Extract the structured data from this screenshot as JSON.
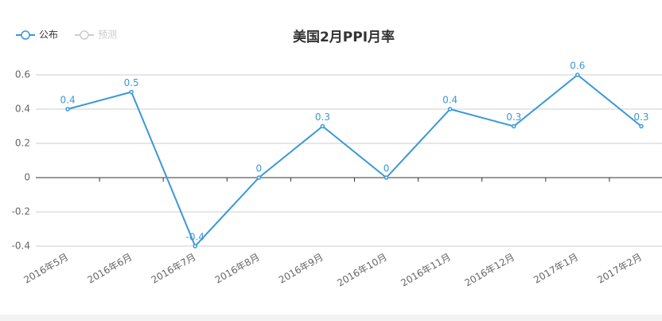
{
  "chart_data": {
    "type": "line",
    "title": "美国2月PPI月率",
    "categories": [
      "2016年5月",
      "2016年6月",
      "2016年7月",
      "2016年8月",
      "2016年9月",
      "2016年10月",
      "2016年11月",
      "2016年12月",
      "2017年1月",
      "2017年2月"
    ],
    "series": [
      {
        "name": "公布",
        "color": "#3a98d8",
        "values": [
          0.4,
          0.5,
          -0.4,
          0,
          0.3,
          0,
          0.4,
          0.3,
          0.6,
          0.3
        ]
      },
      {
        "name": "预测",
        "color": "#cccccc",
        "values": [
          null,
          null,
          null,
          null,
          null,
          null,
          null,
          null,
          null,
          null
        ]
      }
    ],
    "ylim": [
      -0.4,
      0.6
    ],
    "yticks": [
      -0.4,
      -0.2,
      0,
      0.2,
      0.4,
      0.6
    ],
    "grid": true
  }
}
